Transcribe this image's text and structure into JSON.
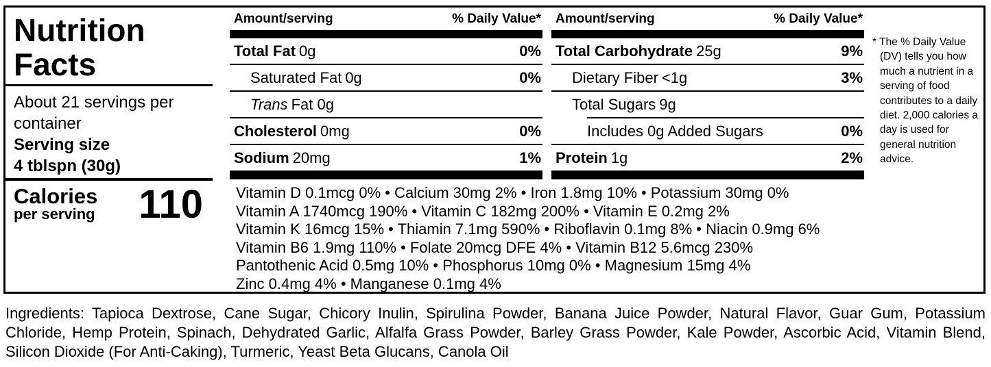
{
  "colors": {
    "text": "#000000",
    "background": "#ffffff"
  },
  "label": {
    "title": "Nutrition Facts",
    "servings_per_container": "About 21 servings per container",
    "serving_size_label": "Serving size",
    "serving_size_value": "4 tblspn (30g)",
    "calories_label": "Calories",
    "calories_sublabel": "per serving",
    "calories_value": "110",
    "columns": [
      {
        "header_amount": "Amount/serving",
        "header_dv": "% Daily Value*",
        "rows": [
          {
            "name": "Total Fat",
            "rest": "0g",
            "dv": "0%"
          },
          {
            "name": "Saturated Fat",
            "rest": "0g",
            "dv": "0%"
          },
          {
            "name": "Trans",
            "rest": "Fat 0g",
            "dv": ""
          },
          {
            "name": "Cholesterol",
            "rest": "0mg",
            "dv": "0%"
          },
          {
            "name": "Sodium",
            "rest": "20mg",
            "dv": "1%"
          }
        ]
      },
      {
        "header_amount": "Amount/serving",
        "header_dv": "% Daily Value*",
        "rows": [
          {
            "name": "Total Carbohydrate",
            "rest": "25g",
            "dv": "9%"
          },
          {
            "name": "Dietary Fiber",
            "rest": "<1g",
            "dv": "3%"
          },
          {
            "name": "Total Sugars",
            "rest": "9g",
            "dv": ""
          },
          {
            "name": "Includes 0g Added Sugars",
            "rest": "",
            "dv": "0%"
          },
          {
            "name": "Protein",
            "rest": "1g",
            "dv": "2%"
          }
        ]
      }
    ],
    "micronutrient_lines": [
      "Vitamin D 0.1mcg 0% • Calcium 30mg 2% • Iron 1.8mg 10% • Potassium 30mg 0%",
      "Vitamin A 1740mcg 190% • Vitamin C 182mg 200% • Vitamin E 0.2mg 2%",
      "Vitamin K 16mcg 15% • Thiamin 7.1mg 590% • Riboflavin 0.1mg 8% • Niacin 0.9mg 6%",
      "Vitamin B6 1.9mg 110% • Folate 20mcg DFE 4% • Vitamin B12 5.6mcg 230%",
      "Pantothenic Acid 0.5mg 10% • Phosphorus 10mg 0% • Magnesium 15mg 4%",
      "Zinc 0.4mg 4% • Manganese 0.1mg 4%"
    ],
    "footnote": "* The % Daily Value (DV) tells you how much a nutrient in a serving of food contributes to a daily diet. 2,000 calories a day is used for general nutrition advice."
  },
  "ingredients": "Ingredients: Tapioca Dextrose, Cane Sugar, Chicory Inulin, Spirulina Powder, Banana Juice Powder, Natural Flavor, Guar Gum, Potassium Chloride, Hemp Protein, Spinach, Dehydrated Garlic, Alfalfa Grass Powder, Barley Grass Powder, Kale Powder, Ascorbic Acid, Vitamin Blend, Silicon Dioxide (For Anti-Caking), Turmeric, Yeast Beta Glucans, Canola Oil"
}
